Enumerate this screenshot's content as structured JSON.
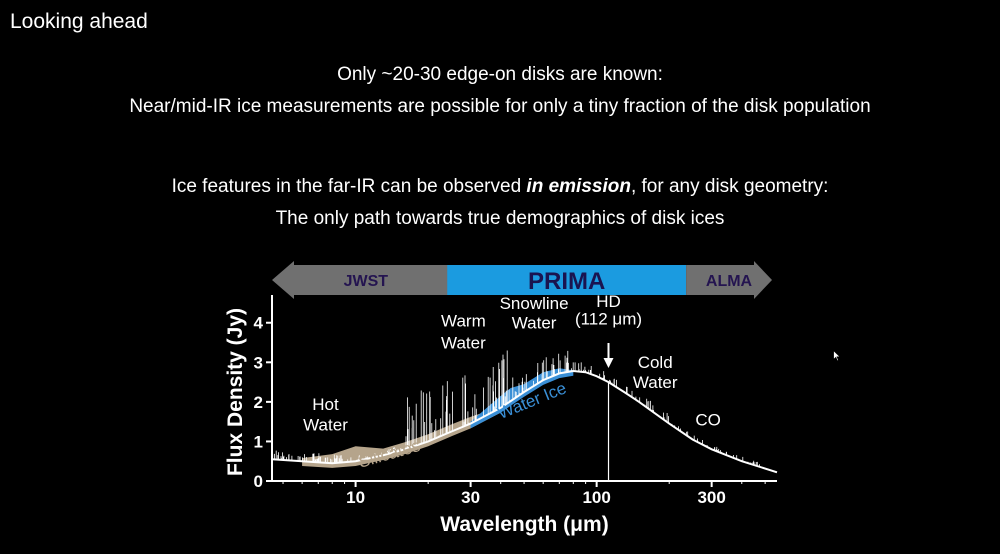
{
  "slide": {
    "title": "Looking ahead",
    "line1": "Only ~20-30 edge-on disks are known:",
    "line2": "Near/mid-IR ice measurements are possible for only a tiny fraction of the disk population",
    "line3_pre": "Ice features in the far-IR can be observed ",
    "line3_em": "in emission",
    "line3_post": ", for any disk geometry:",
    "line4": "The only path towards true demographics of disk ices"
  },
  "chart_data": {
    "type": "line",
    "xlabel": "Wavelength (μm)",
    "ylabel": "Flux Density (Jy)",
    "xscale": "log",
    "xlim": [
      4.5,
      560
    ],
    "ylim": [
      0,
      4.6
    ],
    "xticks": [
      10,
      30,
      100,
      300
    ],
    "xtick_labels": [
      "10",
      "30",
      "100",
      "300"
    ],
    "yticks": [
      0,
      1,
      2,
      3,
      4
    ],
    "ytick_labels": [
      "0",
      "1",
      "2",
      "3",
      "4"
    ],
    "continuum": {
      "x": [
        4.5,
        6,
        8,
        10,
        13,
        16,
        20,
        25,
        30,
        40,
        50,
        60,
        70,
        80,
        90,
        100,
        112,
        130,
        150,
        200,
        250,
        300,
        400,
        560
      ],
      "y": [
        0.55,
        0.5,
        0.45,
        0.5,
        0.65,
        0.8,
        1.0,
        1.25,
        1.45,
        1.85,
        2.25,
        2.55,
        2.72,
        2.78,
        2.75,
        2.65,
        2.5,
        2.25,
        2.0,
        1.45,
        1.05,
        0.8,
        0.5,
        0.22
      ]
    },
    "bands": [
      {
        "name": "Silicates",
        "color": "#b5a48b",
        "x": [
          6,
          8,
          10,
          13,
          16,
          20,
          25,
          30,
          40
        ],
        "y_top": [
          0.58,
          0.68,
          0.88,
          0.82,
          0.98,
          1.18,
          1.43,
          1.62,
          1.88
        ]
      },
      {
        "name": "Water Ice",
        "color": "#3a8fd6",
        "x": [
          30,
          40,
          44,
          50,
          60,
          70,
          80
        ],
        "y_top": [
          1.5,
          2.15,
          2.35,
          2.45,
          2.75,
          2.85,
          2.8
        ]
      }
    ],
    "range_bars": [
      {
        "label": "JWST",
        "color": "#707070",
        "x": [
          4.5,
          27
        ],
        "direction": "left"
      },
      {
        "label": "PRIMA",
        "color": "#1b9be0",
        "x": [
          24,
          235
        ],
        "direction": "none"
      },
      {
        "label": "ALMA",
        "color": "#707070",
        "x": [
          235,
          560
        ],
        "direction": "right"
      }
    ],
    "annotations": [
      {
        "text": "Hot",
        "x": 7.5,
        "y": 1.8
      },
      {
        "text": "Water",
        "x": 7.5,
        "y": 1.28
      },
      {
        "text": "Warm",
        "x": 28,
        "y": 3.9
      },
      {
        "text": "Water",
        "x": 28,
        "y": 3.35
      },
      {
        "text": "Snowline",
        "x": 55,
        "y": 4.35
      },
      {
        "text": "Water",
        "x": 55,
        "y": 3.85
      },
      {
        "text": "HD",
        "x": 112,
        "y": 4.4
      },
      {
        "text": "(112 μm)",
        "x": 112,
        "y": 3.95
      },
      {
        "text": "Cold",
        "x": 175,
        "y": 2.85
      },
      {
        "text": "Water",
        "x": 175,
        "y": 2.35
      },
      {
        "text": "CO",
        "x": 290,
        "y": 1.4
      },
      {
        "text": "Silicates",
        "x": 14,
        "y": 0.55,
        "rotate": -16,
        "color": "#b5a48b"
      },
      {
        "text": "Water Ice",
        "x": 55,
        "y": 1.9,
        "rotate": -22,
        "color": "#3a8fd6"
      }
    ],
    "hd_marker_x": 112
  }
}
